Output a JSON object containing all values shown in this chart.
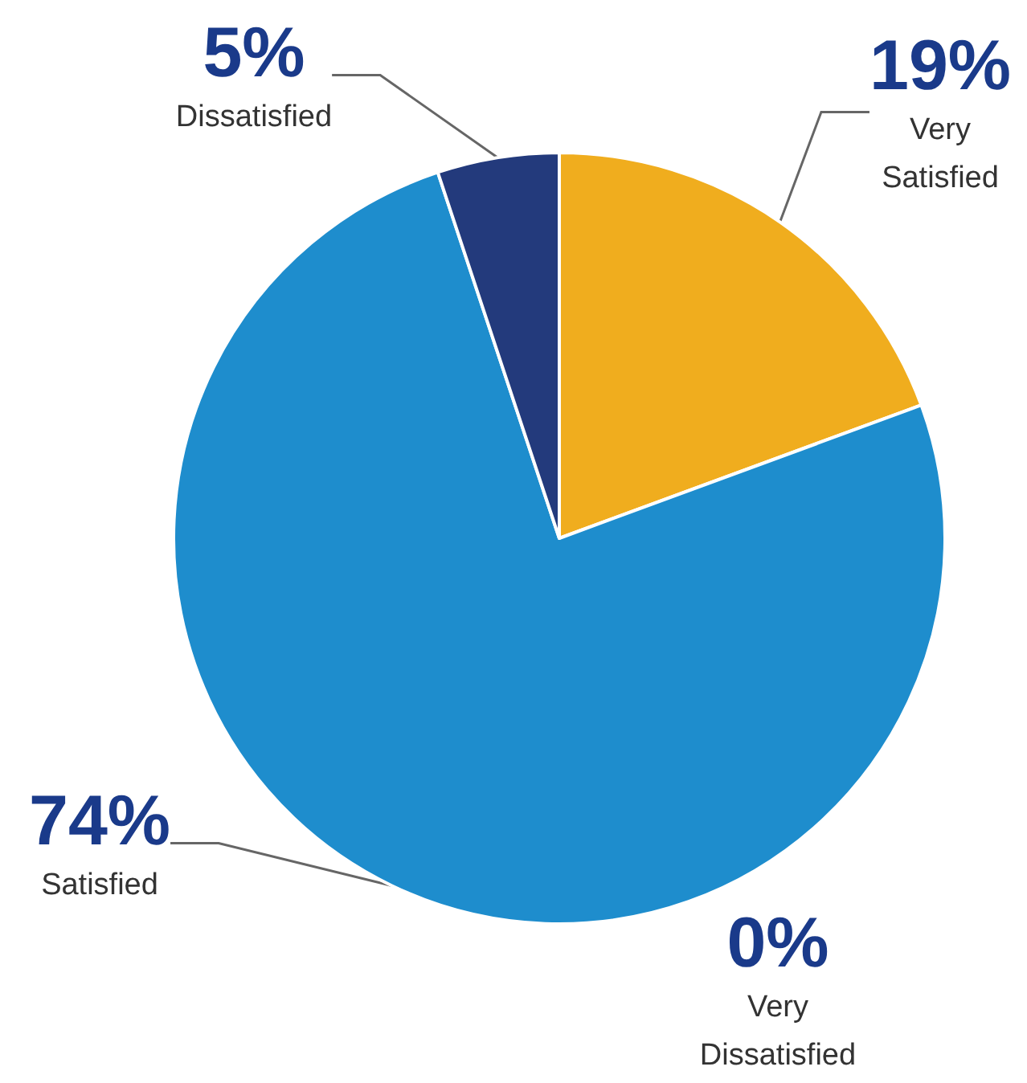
{
  "chart_data": {
    "type": "pie",
    "categories": [
      "Very\nSatisfied",
      "Satisfied",
      "Very\nDissatisfied",
      "Dissatisfied"
    ],
    "values": [
      19,
      74,
      0,
      5
    ],
    "colors": [
      "#f0ad1e",
      "#1e8dcd",
      "#1a3a8a",
      "#233a7c"
    ],
    "value_labels": [
      "19%",
      "74%",
      "0%",
      "5%"
    ],
    "legend": false
  }
}
